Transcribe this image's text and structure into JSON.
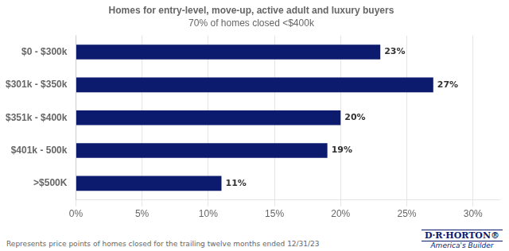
{
  "chart_data": {
    "type": "bar",
    "orientation": "horizontal",
    "title": "Homes for entry-level, move-up, active adult and luxury buyers",
    "subtitle": "70% of homes closed <$400k",
    "categories": [
      "$0 - $300k",
      "$301k - $350k",
      "$351k - $400k",
      "$401k - 500k",
      ">$500K"
    ],
    "values": [
      23,
      27,
      20,
      19,
      11
    ],
    "value_labels": [
      "23%",
      "27%",
      "20%",
      "19%",
      "11%"
    ],
    "data_labels": true,
    "color": "#0d1b6e",
    "xlim": [
      0,
      32
    ],
    "xticks": [
      {
        "value": 0,
        "label": "0%"
      },
      {
        "value": 5,
        "label": "5%"
      },
      {
        "value": 10,
        "label": "10%"
      },
      {
        "value": 15,
        "label": "15%"
      },
      {
        "value": 20,
        "label": "20%"
      },
      {
        "value": 25,
        "label": "25%"
      },
      {
        "value": 30,
        "label": "30%"
      }
    ],
    "grid": true,
    "annotations": [
      "Represents price points of homes closed for the trailing twelve months ended 12/31/23",
      "D·R·HORTON®",
      "America's Builder"
    ]
  }
}
